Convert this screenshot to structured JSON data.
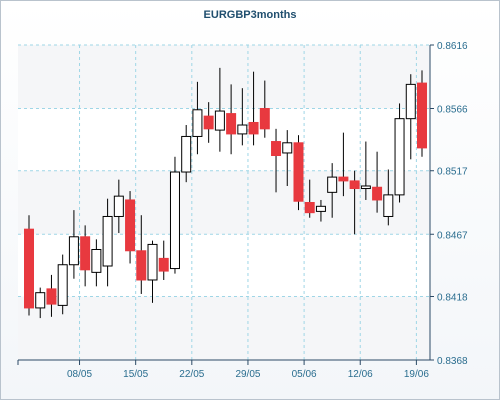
{
  "title": "EURGBP3months",
  "colors": {
    "up_fill": "#ffffff",
    "down_fill": "#e8393f",
    "wick": "#000000",
    "grid": "#9fd6e6",
    "axis": "#2b4a66",
    "tick_text": "#2a6d8f",
    "plot_bg": "#ffffff",
    "band_bg": "#f5f6f8"
  },
  "chart_data": {
    "type": "candlestick",
    "title": "EURGBP3months",
    "y_ticks": [
      "0.8616",
      "0.8566",
      "0.8517",
      "0.8467",
      "0.8418",
      "0.8368"
    ],
    "ylim": [
      0.8368,
      0.8616
    ],
    "x_ticks": [
      "08/05",
      "15/05",
      "22/05",
      "29/05",
      "05/06",
      "12/06",
      "19/06"
    ],
    "grid": true,
    "candles": [
      {
        "o": 0.8471,
        "h": 0.8482,
        "l": 0.8403,
        "c": 0.8409
      },
      {
        "o": 0.8409,
        "h": 0.8425,
        "l": 0.8401,
        "c": 0.8421
      },
      {
        "o": 0.8424,
        "h": 0.8435,
        "l": 0.8402,
        "c": 0.8412
      },
      {
        "o": 0.8411,
        "h": 0.8451,
        "l": 0.8404,
        "c": 0.8443
      },
      {
        "o": 0.8443,
        "h": 0.8486,
        "l": 0.8432,
        "c": 0.8465
      },
      {
        "o": 0.8465,
        "h": 0.8474,
        "l": 0.8426,
        "c": 0.8439
      },
      {
        "o": 0.8437,
        "h": 0.8463,
        "l": 0.8426,
        "c": 0.8455
      },
      {
        "o": 0.8442,
        "h": 0.8495,
        "l": 0.8426,
        "c": 0.8481
      },
      {
        "o": 0.8481,
        "h": 0.851,
        "l": 0.8468,
        "c": 0.8497
      },
      {
        "o": 0.8494,
        "h": 0.8501,
        "l": 0.8444,
        "c": 0.8454
      },
      {
        "o": 0.8454,
        "h": 0.8482,
        "l": 0.842,
        "c": 0.8431
      },
      {
        "o": 0.8431,
        "h": 0.8462,
        "l": 0.8413,
        "c": 0.8459
      },
      {
        "o": 0.8448,
        "h": 0.8462,
        "l": 0.8431,
        "c": 0.8438
      },
      {
        "o": 0.844,
        "h": 0.8528,
        "l": 0.8436,
        "c": 0.8516
      },
      {
        "o": 0.8516,
        "h": 0.8553,
        "l": 0.8508,
        "c": 0.8544
      },
      {
        "o": 0.8544,
        "h": 0.8587,
        "l": 0.853,
        "c": 0.8565
      },
      {
        "o": 0.856,
        "h": 0.8571,
        "l": 0.8539,
        "c": 0.855
      },
      {
        "o": 0.8549,
        "h": 0.8598,
        "l": 0.8532,
        "c": 0.8564
      },
      {
        "o": 0.8562,
        "h": 0.8585,
        "l": 0.853,
        "c": 0.8546
      },
      {
        "o": 0.8546,
        "h": 0.8582,
        "l": 0.8537,
        "c": 0.8553
      },
      {
        "o": 0.8555,
        "h": 0.8595,
        "l": 0.8537,
        "c": 0.8546
      },
      {
        "o": 0.8566,
        "h": 0.8588,
        "l": 0.8543,
        "c": 0.855
      },
      {
        "o": 0.854,
        "h": 0.855,
        "l": 0.85,
        "c": 0.8529
      },
      {
        "o": 0.8531,
        "h": 0.8549,
        "l": 0.8505,
        "c": 0.8539
      },
      {
        "o": 0.8539,
        "h": 0.8545,
        "l": 0.8486,
        "c": 0.8493
      },
      {
        "o": 0.8492,
        "h": 0.851,
        "l": 0.848,
        "c": 0.8484
      },
      {
        "o": 0.8485,
        "h": 0.8494,
        "l": 0.8477,
        "c": 0.8489
      },
      {
        "o": 0.85,
        "h": 0.8523,
        "l": 0.848,
        "c": 0.8512
      },
      {
        "o": 0.8512,
        "h": 0.8547,
        "l": 0.8497,
        "c": 0.8509
      },
      {
        "o": 0.8509,
        "h": 0.8517,
        "l": 0.8467,
        "c": 0.8503
      },
      {
        "o": 0.8503,
        "h": 0.854,
        "l": 0.8494,
        "c": 0.8505
      },
      {
        "o": 0.8504,
        "h": 0.8532,
        "l": 0.8484,
        "c": 0.8494
      },
      {
        "o": 0.8481,
        "h": 0.8518,
        "l": 0.8474,
        "c": 0.8498
      },
      {
        "o": 0.8498,
        "h": 0.857,
        "l": 0.8492,
        "c": 0.8558
      },
      {
        "o": 0.8558,
        "h": 0.8593,
        "l": 0.8526,
        "c": 0.8585
      },
      {
        "o": 0.8586,
        "h": 0.8596,
        "l": 0.8528,
        "c": 0.8535
      }
    ]
  }
}
